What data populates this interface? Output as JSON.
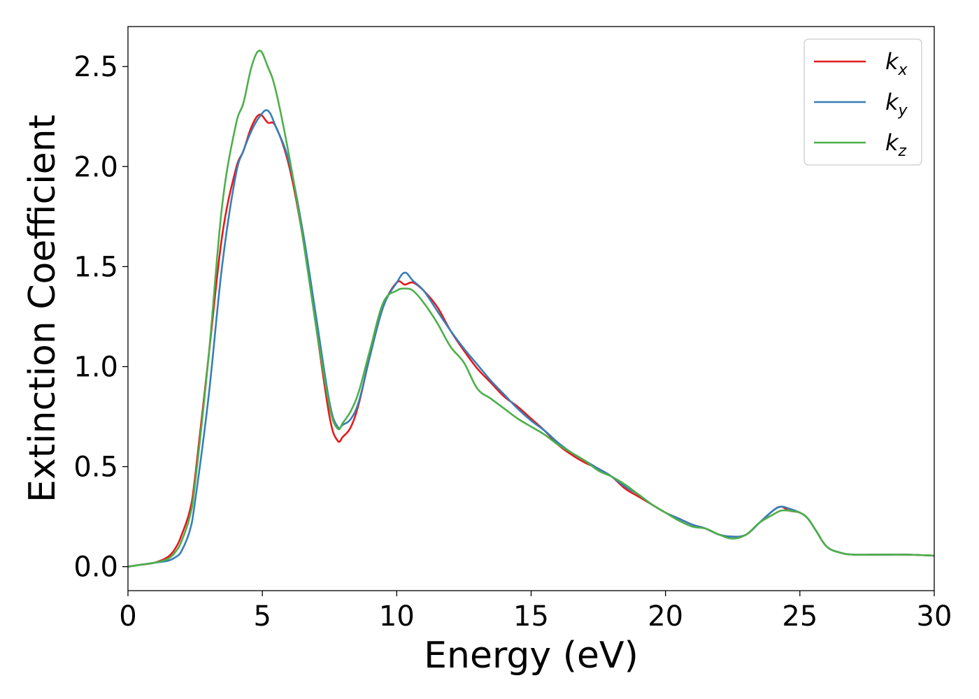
{
  "chart_data": {
    "type": "line",
    "title": "",
    "xlabel": "Energy (eV)",
    "ylabel": "Extinction Coefficient",
    "xlim": [
      0,
      30
    ],
    "ylim": [
      -0.12,
      2.7
    ],
    "xticks": [
      0,
      5,
      10,
      15,
      20,
      25,
      30
    ],
    "xtick_labels": [
      "0",
      "5",
      "10",
      "15",
      "20",
      "25",
      "30"
    ],
    "yticks": [
      0.0,
      0.5,
      1.0,
      1.5,
      2.0,
      2.5
    ],
    "ytick_labels": [
      "0.0",
      "0.5",
      "1.0",
      "1.5",
      "2.0",
      "2.5"
    ],
    "grid": false,
    "legend_position": "top-right",
    "series": [
      {
        "name": "kx",
        "legend_base": "k",
        "legend_sub": "x",
        "color": "#e41a1c",
        "x": [
          0,
          0.5,
          1.0,
          1.5,
          1.8,
          2.0,
          2.3,
          2.5,
          3.0,
          3.5,
          4.0,
          4.3,
          4.6,
          4.9,
          5.2,
          5.5,
          6.0,
          6.5,
          7.0,
          7.5,
          7.8,
          8.0,
          8.3,
          8.6,
          9.0,
          9.5,
          10.0,
          10.3,
          10.6,
          11.0,
          11.5,
          12.0,
          12.5,
          13.0,
          13.5,
          14.0,
          14.5,
          15.0,
          15.5,
          16.0,
          16.5,
          17.0,
          17.5,
          18.0,
          18.5,
          19.0,
          19.5,
          20.0,
          20.5,
          21.0,
          21.5,
          22.0,
          22.5,
          23.0,
          23.5,
          24.0,
          24.3,
          24.6,
          25.0,
          25.3,
          25.6,
          26.0,
          26.5,
          27.0,
          28.0,
          29.0,
          30.0
        ],
        "y": [
          0.0,
          0.01,
          0.02,
          0.05,
          0.1,
          0.16,
          0.28,
          0.45,
          1.05,
          1.65,
          1.98,
          2.08,
          2.2,
          2.26,
          2.22,
          2.2,
          2.0,
          1.65,
          1.2,
          0.75,
          0.63,
          0.65,
          0.7,
          0.82,
          1.05,
          1.3,
          1.42,
          1.41,
          1.42,
          1.38,
          1.3,
          1.18,
          1.08,
          0.99,
          0.92,
          0.85,
          0.8,
          0.74,
          0.68,
          0.61,
          0.56,
          0.52,
          0.49,
          0.45,
          0.39,
          0.35,
          0.31,
          0.27,
          0.24,
          0.21,
          0.19,
          0.16,
          0.15,
          0.16,
          0.22,
          0.28,
          0.3,
          0.28,
          0.27,
          0.24,
          0.18,
          0.1,
          0.07,
          0.06,
          0.06,
          0.06,
          0.055
        ]
      },
      {
        "name": "ky",
        "legend_base": "k",
        "legend_sub": "y",
        "color": "#377eb8",
        "x": [
          0,
          0.5,
          1.0,
          1.5,
          1.8,
          2.0,
          2.3,
          2.5,
          3.0,
          3.5,
          4.0,
          4.3,
          4.6,
          4.9,
          5.2,
          5.5,
          6.0,
          6.5,
          7.0,
          7.5,
          7.8,
          8.0,
          8.3,
          8.6,
          9.0,
          9.5,
          10.0,
          10.3,
          10.6,
          11.0,
          11.5,
          12.0,
          12.5,
          13.0,
          13.5,
          14.0,
          14.5,
          15.0,
          15.5,
          16.0,
          16.5,
          17.0,
          17.5,
          18.0,
          18.5,
          19.0,
          19.5,
          20.0,
          20.5,
          21.0,
          21.5,
          22.0,
          22.5,
          23.0,
          23.5,
          24.0,
          24.3,
          24.6,
          25.0,
          25.3,
          25.6,
          26.0,
          26.5,
          27.0,
          28.0,
          29.0,
          30.0
        ],
        "y": [
          0.0,
          0.01,
          0.02,
          0.03,
          0.05,
          0.08,
          0.18,
          0.33,
          0.85,
          1.5,
          1.95,
          2.08,
          2.18,
          2.25,
          2.28,
          2.2,
          2.02,
          1.68,
          1.25,
          0.82,
          0.7,
          0.71,
          0.74,
          0.83,
          1.05,
          1.3,
          1.42,
          1.47,
          1.43,
          1.38,
          1.28,
          1.18,
          1.09,
          1.01,
          0.93,
          0.86,
          0.79,
          0.73,
          0.68,
          0.62,
          0.57,
          0.53,
          0.49,
          0.45,
          0.4,
          0.36,
          0.31,
          0.27,
          0.24,
          0.21,
          0.19,
          0.16,
          0.15,
          0.16,
          0.22,
          0.28,
          0.3,
          0.29,
          0.27,
          0.24,
          0.18,
          0.1,
          0.07,
          0.06,
          0.06,
          0.06,
          0.055
        ]
      },
      {
        "name": "kz",
        "legend_base": "k",
        "legend_sub": "z",
        "color": "#4daf4a",
        "x": [
          0,
          0.5,
          1.0,
          1.5,
          1.8,
          2.0,
          2.3,
          2.5,
          3.0,
          3.5,
          4.0,
          4.3,
          4.6,
          4.9,
          5.2,
          5.5,
          6.0,
          6.5,
          7.0,
          7.5,
          7.8,
          8.0,
          8.3,
          8.6,
          9.0,
          9.5,
          10.0,
          10.3,
          10.6,
          11.0,
          11.5,
          12.0,
          12.5,
          13.0,
          13.5,
          14.0,
          14.5,
          15.0,
          15.5,
          16.0,
          16.5,
          17.0,
          17.5,
          18.0,
          18.5,
          19.0,
          19.5,
          20.0,
          20.5,
          21.0,
          21.5,
          22.0,
          22.5,
          23.0,
          23.5,
          24.0,
          24.3,
          24.6,
          25.0,
          25.3,
          25.6,
          26.0,
          26.5,
          27.0,
          28.0,
          29.0,
          30.0
        ],
        "y": [
          0.0,
          0.01,
          0.02,
          0.04,
          0.08,
          0.13,
          0.25,
          0.42,
          1.05,
          1.8,
          2.2,
          2.32,
          2.5,
          2.58,
          2.5,
          2.38,
          2.05,
          1.65,
          1.2,
          0.8,
          0.69,
          0.72,
          0.78,
          0.88,
          1.08,
          1.32,
          1.38,
          1.39,
          1.38,
          1.32,
          1.22,
          1.1,
          1.02,
          0.89,
          0.84,
          0.79,
          0.74,
          0.7,
          0.66,
          0.61,
          0.57,
          0.53,
          0.48,
          0.45,
          0.41,
          0.36,
          0.31,
          0.27,
          0.23,
          0.2,
          0.19,
          0.16,
          0.14,
          0.16,
          0.22,
          0.26,
          0.28,
          0.28,
          0.27,
          0.24,
          0.18,
          0.1,
          0.07,
          0.06,
          0.06,
          0.06,
          0.055
        ]
      }
    ]
  }
}
